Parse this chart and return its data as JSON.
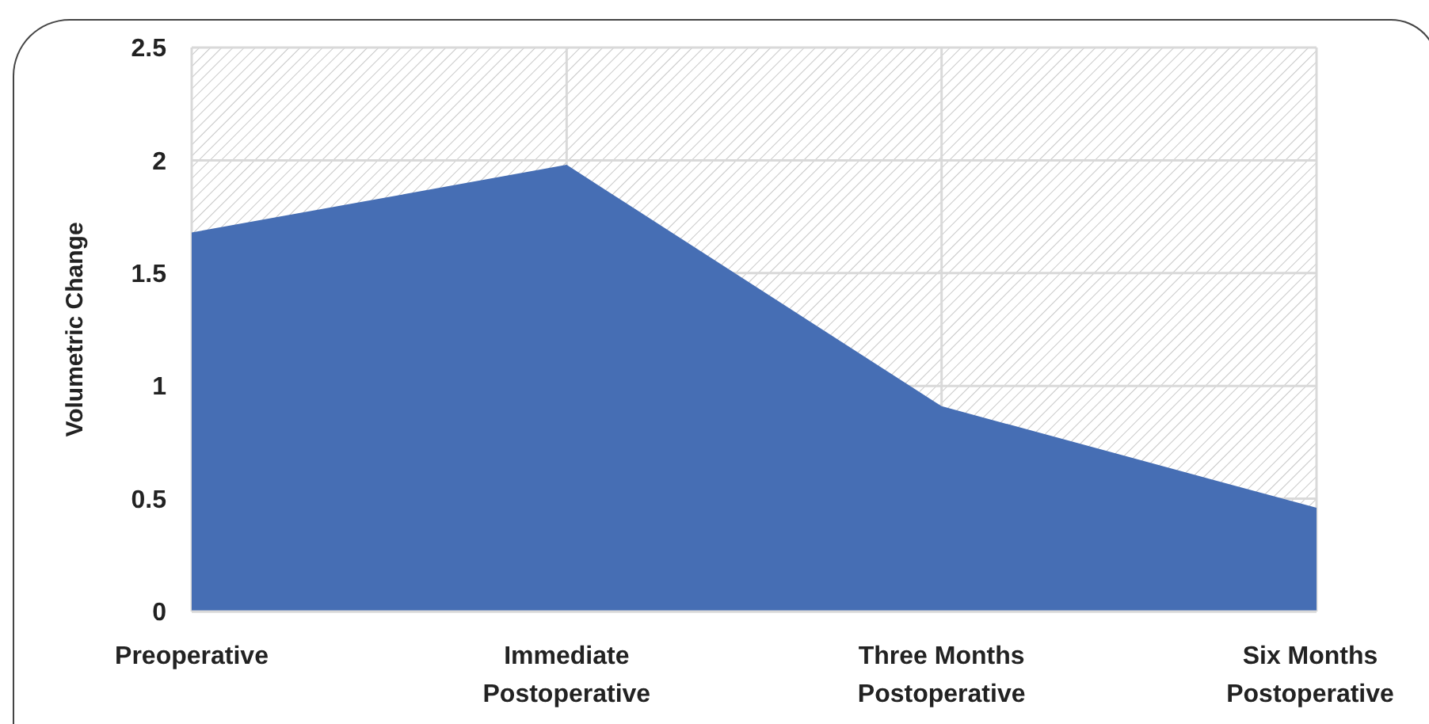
{
  "chart_data": {
    "type": "area",
    "ylabel": "Volumetric Change",
    "categories": [
      "Preoperative",
      "Immediate Postoperative",
      "Three Months Postoperative",
      "Six Months Postoperative"
    ],
    "values": [
      1.68,
      1.98,
      0.91,
      0.46
    ],
    "color": "#466eb4",
    "ylim": [
      0,
      2.5
    ],
    "yticks": [
      0,
      0.5,
      1,
      1.5,
      2,
      2.5
    ],
    "grid": true
  }
}
